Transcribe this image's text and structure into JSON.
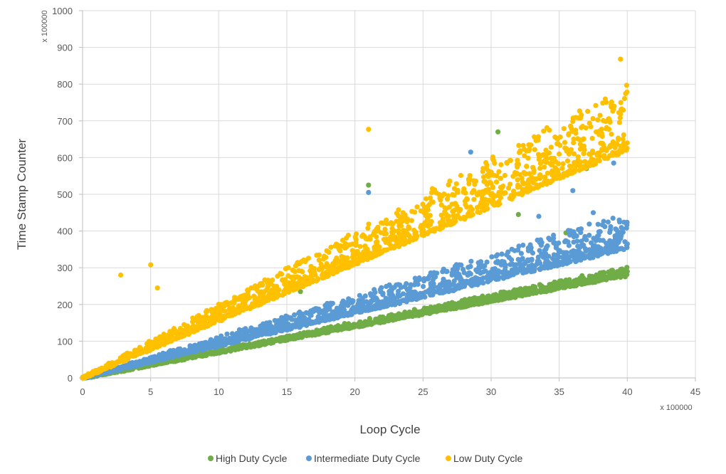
{
  "chart_data": {
    "type": "scatter",
    "title": "",
    "xlabel": "Loop Cycle",
    "ylabel": "Time Stamp Counter",
    "x_multiplier": "x 100000",
    "y_multiplier": "x 100000",
    "xlim": [
      0,
      45
    ],
    "ylim": [
      0,
      1000
    ],
    "x_ticks": [
      "0",
      "5",
      "10",
      "15",
      "20",
      "25",
      "30",
      "35",
      "40",
      "45"
    ],
    "y_ticks": [
      "0",
      "100",
      "200",
      "300",
      "400",
      "500",
      "600",
      "700",
      "800",
      "900",
      "1000"
    ],
    "grid": true,
    "legend_position": "bottom",
    "series": [
      {
        "name": "High Duty Cycle",
        "color": "#70ad47",
        "trend": {
          "x_range": [
            0,
            40
          ],
          "slope": 7.2,
          "upper_spread": 1.05,
          "lower_spread": 0.97
        },
        "points": [
          [
            0,
            0
          ],
          [
            10,
            72
          ],
          [
            20,
            145
          ],
          [
            30,
            218
          ],
          [
            40,
            290
          ]
        ],
        "outliers": [
          [
            16,
            235
          ],
          [
            21,
            525
          ],
          [
            30.5,
            670
          ],
          [
            32,
            445
          ],
          [
            35.5,
            395
          ],
          [
            37,
            570
          ]
        ]
      },
      {
        "name": "Intermediate Duty Cycle",
        "color": "#5b9bd5",
        "trend": {
          "x_range": [
            0,
            40
          ],
          "slope": 9.0,
          "upper_spread": 1.25,
          "lower_spread": 0.98
        },
        "points": [
          [
            0,
            0
          ],
          [
            10,
            95
          ],
          [
            20,
            185
          ],
          [
            30,
            275
          ],
          [
            40,
            365
          ]
        ],
        "outliers": [
          [
            21,
            505
          ],
          [
            28.5,
            615
          ],
          [
            36,
            510
          ],
          [
            37.5,
            450
          ],
          [
            39,
            585
          ],
          [
            33.5,
            440
          ]
        ]
      },
      {
        "name": "Low Duty Cycle",
        "color": "#ffc000",
        "trend": {
          "x_range": [
            0,
            40
          ],
          "slope": 16.0,
          "upper_spread": 1.25,
          "lower_spread": 0.97
        },
        "points": [
          [
            0,
            0
          ],
          [
            10,
            160
          ],
          [
            20,
            320
          ],
          [
            30,
            480
          ],
          [
            40,
            640
          ]
        ],
        "outliers": [
          [
            2.8,
            280
          ],
          [
            5,
            308
          ],
          [
            5.5,
            245
          ],
          [
            21,
            677
          ],
          [
            36.5,
            727
          ],
          [
            39.5,
            868
          ],
          [
            39.5,
            718
          ],
          [
            38,
            715
          ]
        ]
      }
    ]
  }
}
